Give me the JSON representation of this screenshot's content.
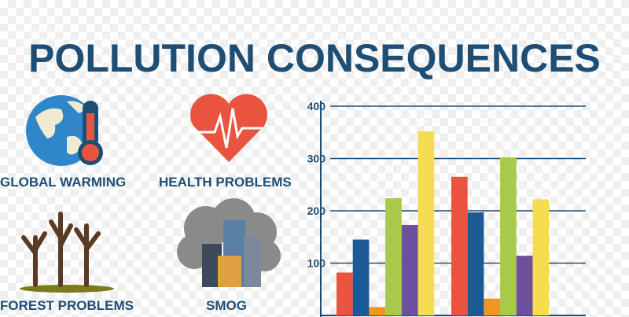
{
  "title": "POLLUTION CONSEQUENCES",
  "labels": {
    "global_warming": "GLOBAL WARMING",
    "health": "HEALTH PROBLEMS",
    "forest": "FOREST PROBLEMS",
    "smog": "SMOG"
  },
  "icons": [
    "globe-thermometer-icon",
    "heart-pulse-icon",
    "dead-trees-icon",
    "smog-city-icon"
  ],
  "chart_data": {
    "type": "bar",
    "title": "",
    "xlabel": "",
    "ylabel": "",
    "ylim": [
      0,
      400
    ],
    "yticks": [
      "100",
      "200",
      "300",
      "400"
    ],
    "grid": true,
    "categories": [
      "group 1",
      "group 2"
    ],
    "series": [
      {
        "color": "#e8543f",
        "values": [
          82,
          265
        ]
      },
      {
        "color": "#1b5a96",
        "values": [
          145,
          197
        ]
      },
      {
        "color": "#f39424",
        "values": [
          16,
          32
        ]
      },
      {
        "color": "#a8c94a",
        "values": [
          224,
          302
        ]
      },
      {
        "color": "#6c4f9e",
        "values": [
          173,
          114
        ]
      },
      {
        "color": "#f5dc50",
        "values": [
          352,
          222
        ]
      }
    ]
  }
}
